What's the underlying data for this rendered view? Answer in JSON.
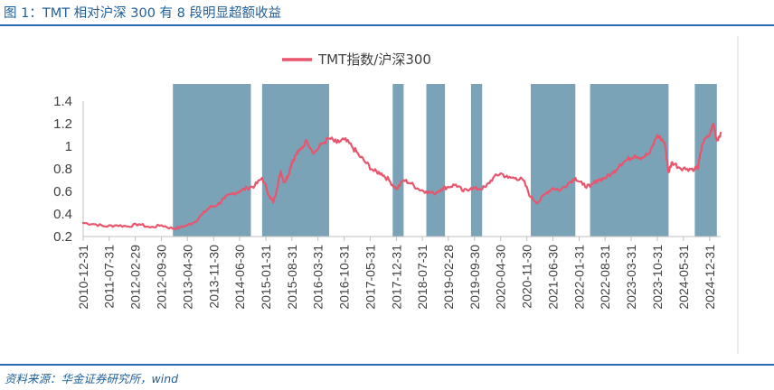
{
  "figure": {
    "title": "图 1：TMT 相对沪深 300 有 8 段明显超额收益",
    "source": "资料来源：华金证券研究所，wind"
  },
  "colors": {
    "line": "#e8556c",
    "band": "#7aa3b8",
    "axis": "#bfbfbf",
    "rule": "#2b6cb0",
    "title": "#1f5f99"
  },
  "chart_data": {
    "type": "line",
    "title": "",
    "xlabel": "",
    "ylabel": "",
    "ylim": [
      0.2,
      1.4
    ],
    "xlim": [
      "2010-12-31",
      "2025-03-31"
    ],
    "yticks": [
      0.2,
      0.4,
      0.6,
      0.8,
      1,
      1.2,
      1.4
    ],
    "yticklabels": [
      "0.2",
      "0.4",
      "0.6",
      "0.8",
      "1",
      "1.2",
      "1.4"
    ],
    "xticklabels": [
      "2010-12-31",
      "2011-07-31",
      "2012-02-29",
      "2012-09-30",
      "2013-04-30",
      "2013-11-30",
      "2014-06-30",
      "2015-01-31",
      "2015-08-31",
      "2016-03-31",
      "2016-10-31",
      "2017-05-31",
      "2017-12-31",
      "2018-07-31",
      "2019-02-28",
      "2019-09-30",
      "2020-04-30",
      "2020-11-30",
      "2021-06-30",
      "2022-01-31",
      "2022-08-31",
      "2023-03-31",
      "2023-10-31",
      "2024-05-31",
      "2024-12-31"
    ],
    "legend": {
      "position": "top-center",
      "entries": [
        "TMT指数/沪深300"
      ]
    },
    "grid": false,
    "series": [
      {
        "name": "TMT指数/沪深300",
        "x": [
          "2010-12-31",
          "2011-03-31",
          "2011-06-30",
          "2011-09-30",
          "2011-12-31",
          "2012-03-31",
          "2012-06-30",
          "2012-09-30",
          "2012-12-31",
          "2013-02-28",
          "2013-04-30",
          "2013-06-30",
          "2013-08-31",
          "2013-10-31",
          "2013-12-31",
          "2014-02-28",
          "2014-04-30",
          "2014-06-30",
          "2014-08-31",
          "2014-10-31",
          "2014-12-31",
          "2015-02-28",
          "2015-03-31",
          "2015-04-30",
          "2015-05-31",
          "2015-06-30",
          "2015-07-31",
          "2015-08-31",
          "2015-09-30",
          "2015-10-31",
          "2015-12-31",
          "2016-02-29",
          "2016-04-30",
          "2016-06-30",
          "2016-08-31",
          "2016-10-31",
          "2016-12-31",
          "2017-02-28",
          "2017-04-30",
          "2017-06-30",
          "2017-08-31",
          "2017-10-31",
          "2017-12-31",
          "2018-02-28",
          "2018-04-30",
          "2018-06-30",
          "2018-08-31",
          "2018-10-31",
          "2018-12-31",
          "2019-02-28",
          "2019-04-30",
          "2019-06-30",
          "2019-08-31",
          "2019-10-31",
          "2019-12-31",
          "2020-02-29",
          "2020-04-30",
          "2020-06-30",
          "2020-08-31",
          "2020-10-31",
          "2020-12-31",
          "2021-02-28",
          "2021-04-30",
          "2021-06-30",
          "2021-08-31",
          "2021-10-31",
          "2021-12-31",
          "2022-02-28",
          "2022-04-30",
          "2022-06-30",
          "2022-08-31",
          "2022-10-31",
          "2022-12-31",
          "2023-02-28",
          "2023-04-30",
          "2023-06-30",
          "2023-08-31",
          "2023-10-31",
          "2023-12-31",
          "2024-01-31",
          "2024-02-29",
          "2024-04-30",
          "2024-06-30",
          "2024-08-31",
          "2024-09-30",
          "2024-10-31",
          "2024-12-31",
          "2025-01-31",
          "2025-02-28",
          "2025-03-31"
        ],
        "values": [
          0.32,
          0.31,
          0.29,
          0.3,
          0.29,
          0.31,
          0.28,
          0.3,
          0.27,
          0.28,
          0.3,
          0.33,
          0.4,
          0.46,
          0.48,
          0.54,
          0.58,
          0.6,
          0.63,
          0.65,
          0.72,
          0.56,
          0.5,
          0.62,
          0.78,
          0.68,
          0.74,
          0.86,
          0.92,
          0.96,
          1.05,
          0.94,
          1.02,
          1.07,
          1.03,
          1.06,
          1.0,
          0.92,
          0.85,
          0.78,
          0.76,
          0.7,
          0.62,
          0.7,
          0.67,
          0.62,
          0.6,
          0.58,
          0.62,
          0.64,
          0.66,
          0.6,
          0.63,
          0.62,
          0.64,
          0.72,
          0.76,
          0.72,
          0.72,
          0.7,
          0.55,
          0.5,
          0.58,
          0.63,
          0.61,
          0.67,
          0.72,
          0.66,
          0.64,
          0.7,
          0.72,
          0.76,
          0.84,
          0.88,
          0.92,
          0.9,
          0.94,
          1.1,
          1.03,
          0.77,
          0.86,
          0.81,
          0.8,
          0.8,
          0.82,
          1.02,
          1.1,
          1.2,
          1.05,
          1.12
        ]
      }
    ],
    "bands": [
      {
        "start": "2013-01-01",
        "end": "2014-09-30"
      },
      {
        "start": "2014-12-31",
        "end": "2016-06-30"
      },
      {
        "start": "2017-12-01",
        "end": "2018-02-28"
      },
      {
        "start": "2018-09-01",
        "end": "2019-01-31"
      },
      {
        "start": "2019-09-01",
        "end": "2019-12-01"
      },
      {
        "start": "2021-01-01",
        "end": "2021-12-31"
      },
      {
        "start": "2022-04-30",
        "end": "2024-01-31"
      },
      {
        "start": "2024-09-01",
        "end": "2025-02-28"
      }
    ]
  }
}
